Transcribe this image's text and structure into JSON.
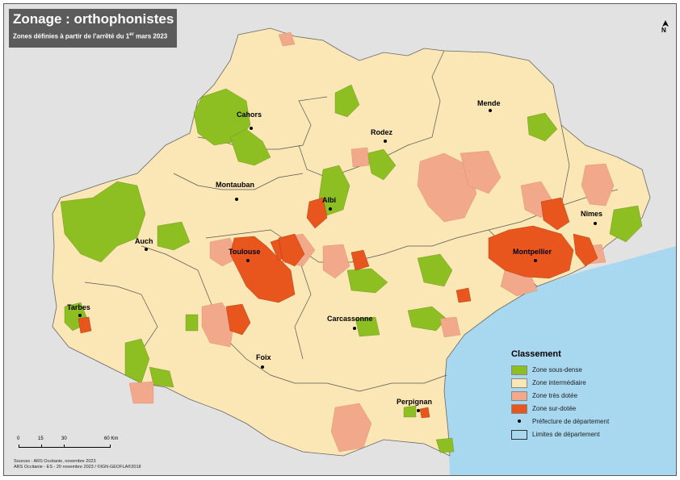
{
  "title": "Zonage : orthophonistes",
  "subtitle_main": "Zones définies à partir de l'arrêté du 1",
  "subtitle_sup": "er",
  "subtitle_end": " mars 2023",
  "cities": [
    {
      "name": "Cahors"
    },
    {
      "name": "Rodez"
    },
    {
      "name": "Mende"
    },
    {
      "name": "Montauban"
    },
    {
      "name": "Albi"
    },
    {
      "name": "Nîmes"
    },
    {
      "name": "Auch"
    },
    {
      "name": "Toulouse"
    },
    {
      "name": "Montpellier"
    },
    {
      "name": "Tarbes"
    },
    {
      "name": "Carcassonne"
    },
    {
      "name": "Foix"
    },
    {
      "name": "Perpignan"
    }
  ],
  "legend": {
    "title": "Classement",
    "items": [
      {
        "label": "Zone sous-dense",
        "color": "#8dbe22"
      },
      {
        "label": "Zone intermédiaire",
        "color": "#fbe7b5"
      },
      {
        "label": "Zone très dotée",
        "color": "#f2a98b"
      },
      {
        "label": "Zone sur-dotée",
        "color": "#e8561e"
      }
    ],
    "prefecture_label": "Préfecture de département",
    "limits_label": "Limites de département"
  },
  "scale": {
    "ticks": [
      "0",
      "15",
      "30",
      "60 Km"
    ]
  },
  "sources": {
    "line1": "Sources : ARS Occitanie, novembre 2023",
    "line2": "ARS Occitanie - ES - 20 novembre 2023 / ©IGN-GEOFLA®2018"
  },
  "north_label": "N",
  "colors": {
    "outside": "#e2e2e2",
    "sea": "#a7d8ef",
    "intermediate": "#fbe7b5",
    "underserved": "#8dbe22",
    "well_served": "#f2a98b",
    "over_served": "#e8561e"
  }
}
